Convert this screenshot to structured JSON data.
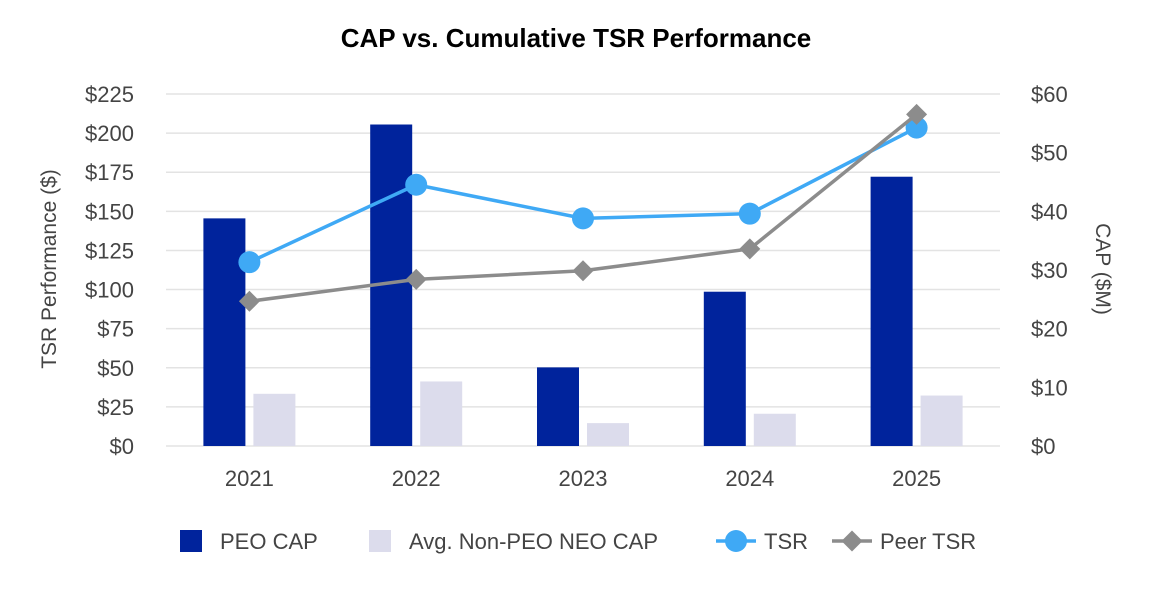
{
  "chart_data": {
    "type": "bar",
    "title": "CAP vs. Cumulative TSR Performance",
    "categories": [
      "2021",
      "2022",
      "2023",
      "2024",
      "2025"
    ],
    "ylabel_left": "TSR Performance ($)",
    "ylabel_right": "CAP ($M)",
    "ylim_left": [
      0,
      225
    ],
    "ylim_right": [
      0,
      60
    ],
    "yticks_left": [
      "$0",
      "$25",
      "$50",
      "$75",
      "$100",
      "$125",
      "$150",
      "$175",
      "$200",
      "$225"
    ],
    "yticks_right": [
      "$0",
      "$10",
      "$20",
      "$30",
      "$40",
      "$50",
      "$60"
    ],
    "grid": true,
    "legend_position": "bottom",
    "bar_series": [
      {
        "name": "PEO CAP",
        "axis": "right",
        "color": "#00239c",
        "values": [
          38.8,
          54.8,
          13.4,
          26.3,
          45.9
        ]
      },
      {
        "name": "Avg. Non-PEO NEO CAP",
        "axis": "right",
        "color": "#dcdcec",
        "values": [
          8.9,
          11.0,
          3.9,
          5.5,
          8.6
        ]
      }
    ],
    "line_series": [
      {
        "name": "TSR",
        "axis": "left",
        "color": "#3fa9f5",
        "marker": "circle",
        "values": [
          117.5,
          167,
          145.5,
          148.5,
          203.5
        ]
      },
      {
        "name": "Peer TSR",
        "axis": "left",
        "color": "#8c8c8c",
        "marker": "diamond",
        "values": [
          92.5,
          106.5,
          112,
          126,
          212
        ]
      }
    ]
  }
}
